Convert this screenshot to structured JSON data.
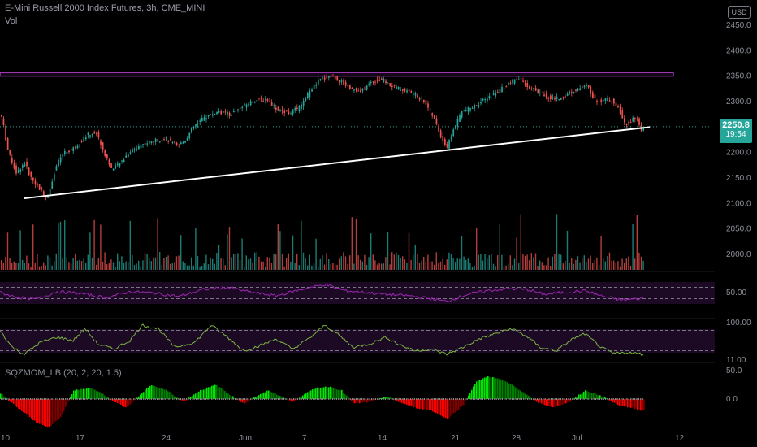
{
  "header": {
    "title": "E-Mini Russell 2000 Index Futures, 3h, CME_MINI",
    "vol_label": "Vol",
    "currency": "USD"
  },
  "indicators": {
    "sqz_label": "SQZMOM_LB (20, 2, 20, 1.5)"
  },
  "last_price": {
    "price": "2250.8",
    "countdown": "19:54"
  },
  "colors": {
    "up": "#26a69a",
    "down": "#ef5350",
    "resistance": "#b040c8",
    "trendline": "#ffffff",
    "rsi": "#9c27b0",
    "stoch": "#7cb342",
    "mom_up_strong": "#00e600",
    "mom_up_weak": "#008000",
    "mom_down_strong": "#ff0000",
    "mom_down_weak": "#800000"
  },
  "chart_data": {
    "type": "candlestick",
    "symbol": "E-Mini Russell 2000 Index Futures, 3h, CME_MINI",
    "price_axis": {
      "ticks": [
        2450,
        2400,
        2350,
        2300,
        2250,
        2200,
        2150,
        2100,
        2050,
        2000
      ],
      "ylim": [
        1980,
        2470
      ]
    },
    "time_axis": {
      "labels": [
        "10",
        "17",
        "24",
        "Jun",
        "7",
        "14",
        "21",
        "28",
        "Jul",
        "12"
      ]
    },
    "price_path": [
      [
        0,
        2275
      ],
      [
        4,
        2270
      ],
      [
        12,
        2200
      ],
      [
        22,
        2160
      ],
      [
        32,
        2180
      ],
      [
        40,
        2150
      ],
      [
        50,
        2130
      ],
      [
        60,
        2110
      ],
      [
        70,
        2170
      ],
      [
        80,
        2200
      ],
      [
        90,
        2205
      ],
      [
        100,
        2220
      ],
      [
        110,
        2235
      ],
      [
        120,
        2240
      ],
      [
        130,
        2200
      ],
      [
        140,
        2165
      ],
      [
        150,
        2180
      ],
      [
        160,
        2200
      ],
      [
        175,
        2215
      ],
      [
        190,
        2222
      ],
      [
        205,
        2228
      ],
      [
        220,
        2212
      ],
      [
        230,
        2225
      ],
      [
        240,
        2250
      ],
      [
        255,
        2270
      ],
      [
        270,
        2280
      ],
      [
        285,
        2275
      ],
      [
        300,
        2290
      ],
      [
        315,
        2303
      ],
      [
        330,
        2305
      ],
      [
        345,
        2282
      ],
      [
        358,
        2278
      ],
      [
        372,
        2290
      ],
      [
        385,
        2325
      ],
      [
        398,
        2345
      ],
      [
        410,
        2350
      ],
      [
        420,
        2340
      ],
      [
        432,
        2328
      ],
      [
        445,
        2318
      ],
      [
        460,
        2340
      ],
      [
        472,
        2343
      ],
      [
        485,
        2330
      ],
      [
        500,
        2322
      ],
      [
        512,
        2315
      ],
      [
        525,
        2300
      ],
      [
        535,
        2270
      ],
      [
        545,
        2230
      ],
      [
        552,
        2210
      ],
      [
        560,
        2245
      ],
      [
        570,
        2280
      ],
      [
        585,
        2290
      ],
      [
        600,
        2305
      ],
      [
        615,
        2320
      ],
      [
        628,
        2335
      ],
      [
        640,
        2345
      ],
      [
        652,
        2330
      ],
      [
        665,
        2318
      ],
      [
        678,
        2308
      ],
      [
        690,
        2305
      ],
      [
        700,
        2315
      ],
      [
        712,
        2325
      ],
      [
        725,
        2330
      ],
      [
        735,
        2302
      ],
      [
        748,
        2305
      ],
      [
        758,
        2300
      ],
      [
        765,
        2282
      ],
      [
        770,
        2255
      ],
      [
        778,
        2262
      ],
      [
        785,
        2270
      ],
      [
        792,
        2240
      ],
      [
        796,
        2250
      ]
    ],
    "resistance_zone": {
      "top": 2357,
      "bottom": 2350,
      "color": "#b040c8"
    },
    "trendline": {
      "from": [
        30,
        2110
      ],
      "to": [
        800,
        2250
      ]
    },
    "last_price": 2250.8,
    "rsi": {
      "levels": [
        70,
        30
      ],
      "axis_ticks": [
        "50.00"
      ],
      "path": [
        [
          0,
          52
        ],
        [
          20,
          35
        ],
        [
          45,
          28
        ],
        [
          70,
          55
        ],
        [
          100,
          48
        ],
        [
          130,
          33
        ],
        [
          160,
          55
        ],
        [
          190,
          50
        ],
        [
          220,
          38
        ],
        [
          250,
          62
        ],
        [
          280,
          70
        ],
        [
          310,
          52
        ],
        [
          340,
          40
        ],
        [
          370,
          62
        ],
        [
          400,
          80
        ],
        [
          425,
          58
        ],
        [
          450,
          52
        ],
        [
          475,
          45
        ],
        [
          505,
          40
        ],
        [
          530,
          30
        ],
        [
          550,
          20
        ],
        [
          575,
          45
        ],
        [
          600,
          58
        ],
        [
          625,
          65
        ],
        [
          650,
          62
        ],
        [
          670,
          45
        ],
        [
          695,
          52
        ],
        [
          720,
          58
        ],
        [
          740,
          40
        ],
        [
          765,
          25
        ],
        [
          790,
          30
        ]
      ]
    },
    "stoch": {
      "levels": [
        80,
        20
      ],
      "axis_ticks": [
        "100.00",
        "11.00"
      ],
      "path": [
        [
          0,
          80
        ],
        [
          15,
          30
        ],
        [
          30,
          10
        ],
        [
          50,
          45
        ],
        [
          70,
          60
        ],
        [
          90,
          50
        ],
        [
          105,
          85
        ],
        [
          120,
          40
        ],
        [
          140,
          25
        ],
        [
          160,
          50
        ],
        [
          175,
          95
        ],
        [
          195,
          85
        ],
        [
          215,
          30
        ],
        [
          240,
          45
        ],
        [
          260,
          95
        ],
        [
          280,
          60
        ],
        [
          300,
          20
        ],
        [
          320,
          35
        ],
        [
          340,
          55
        ],
        [
          360,
          25
        ],
        [
          380,
          55
        ],
        [
          400,
          95
        ],
        [
          415,
          70
        ],
        [
          435,
          30
        ],
        [
          455,
          40
        ],
        [
          475,
          60
        ],
        [
          490,
          40
        ],
        [
          510,
          20
        ],
        [
          530,
          25
        ],
        [
          550,
          10
        ],
        [
          570,
          30
        ],
        [
          590,
          55
        ],
        [
          610,
          70
        ],
        [
          630,
          85
        ],
        [
          650,
          60
        ],
        [
          665,
          30
        ],
        [
          685,
          20
        ],
        [
          705,
          55
        ],
        [
          720,
          70
        ],
        [
          740,
          30
        ],
        [
          755,
          12
        ],
        [
          775,
          15
        ],
        [
          790,
          10
        ]
      ]
    },
    "momentum": {
      "axis_ticks": [
        "50.0",
        "0.0"
      ],
      "path": [
        [
          0,
          10
        ],
        [
          15,
          -8
        ],
        [
          30,
          -25
        ],
        [
          45,
          -42
        ],
        [
          60,
          -50
        ],
        [
          75,
          -30
        ],
        [
          90,
          15
        ],
        [
          110,
          20
        ],
        [
          125,
          10
        ],
        [
          140,
          -5
        ],
        [
          155,
          -15
        ],
        [
          170,
          5
        ],
        [
          185,
          25
        ],
        [
          205,
          15
        ],
        [
          225,
          -5
        ],
        [
          245,
          15
        ],
        [
          265,
          25
        ],
        [
          285,
          5
        ],
        [
          300,
          -8
        ],
        [
          315,
          5
        ],
        [
          330,
          15
        ],
        [
          345,
          5
        ],
        [
          360,
          -5
        ],
        [
          375,
          10
        ],
        [
          390,
          20
        ],
        [
          405,
          22
        ],
        [
          420,
          15
        ],
        [
          435,
          -8
        ],
        [
          455,
          -5
        ],
        [
          475,
          5
        ],
        [
          490,
          -5
        ],
        [
          510,
          -15
        ],
        [
          530,
          -20
        ],
        [
          550,
          -35
        ],
        [
          570,
          -10
        ],
        [
          585,
          30
        ],
        [
          600,
          40
        ],
        [
          615,
          35
        ],
        [
          630,
          25
        ],
        [
          645,
          10
        ],
        [
          660,
          -5
        ],
        [
          680,
          -15
        ],
        [
          700,
          -5
        ],
        [
          720,
          15
        ],
        [
          740,
          5
        ],
        [
          760,
          -10
        ],
        [
          775,
          -15
        ],
        [
          790,
          -20
        ]
      ]
    }
  }
}
